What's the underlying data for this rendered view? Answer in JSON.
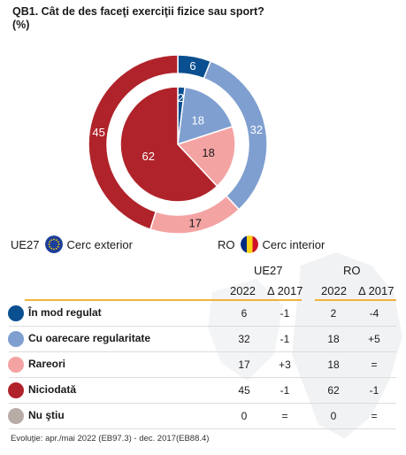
{
  "title": "QB1. Cât de des faceţi exerciţii fizice sau sport?",
  "subtitle": "(%)",
  "legend": {
    "outer_code": "UE27",
    "outer_label": "Cerc exterior",
    "inner_code": "RO",
    "inner_label": "Cerc interior"
  },
  "table": {
    "group_eu": "UE27",
    "group_ro": "RO",
    "col_year": "2022",
    "col_delta": "Δ 2017",
    "rows": [
      {
        "label": "În mod regulat",
        "color": "#0a4f8f",
        "eu": "6",
        "eu_delta": "-1",
        "ro": "2",
        "ro_delta": "-4"
      },
      {
        "label": "Cu oarecare regularitate",
        "color": "#7f9fd0",
        "eu": "32",
        "eu_delta": "-1",
        "ro": "18",
        "ro_delta": "+5"
      },
      {
        "label": "Rareori",
        "color": "#f4a3a3",
        "eu": "17",
        "eu_delta": "+3",
        "ro": "18",
        "ro_delta": "="
      },
      {
        "label": "Niciodată",
        "color": "#b0232a",
        "eu": "45",
        "eu_delta": "-1",
        "ro": "62",
        "ro_delta": "-1"
      },
      {
        "label": "Nu ştiu",
        "color": "#b8aca7",
        "eu": "0",
        "eu_delta": "=",
        "ro": "0",
        "ro_delta": "="
      }
    ]
  },
  "footer": "Evoluţie: apr./mai 2022 (EB97.3) - dec. 2017(EB88.4)",
  "chart_data": {
    "type": "pie",
    "title": "QB1. Cât de des faceţi exerciţii fizice sau sport?",
    "subtitle": "(%)",
    "categories": [
      "În mod regulat",
      "Cu oarecare regularitate",
      "Rareori",
      "Niciodată",
      "Nu ştiu"
    ],
    "colors": [
      "#0a4f8f",
      "#7f9fd0",
      "#f4a3a3",
      "#b0232a",
      "#b8aca7"
    ],
    "series": [
      {
        "name": "Cerc exterior",
        "values": [
          6,
          32,
          17,
          45,
          0
        ]
      },
      {
        "name": "Cerc interior",
        "values": [
          2,
          18,
          18,
          62,
          0
        ]
      }
    ]
  }
}
